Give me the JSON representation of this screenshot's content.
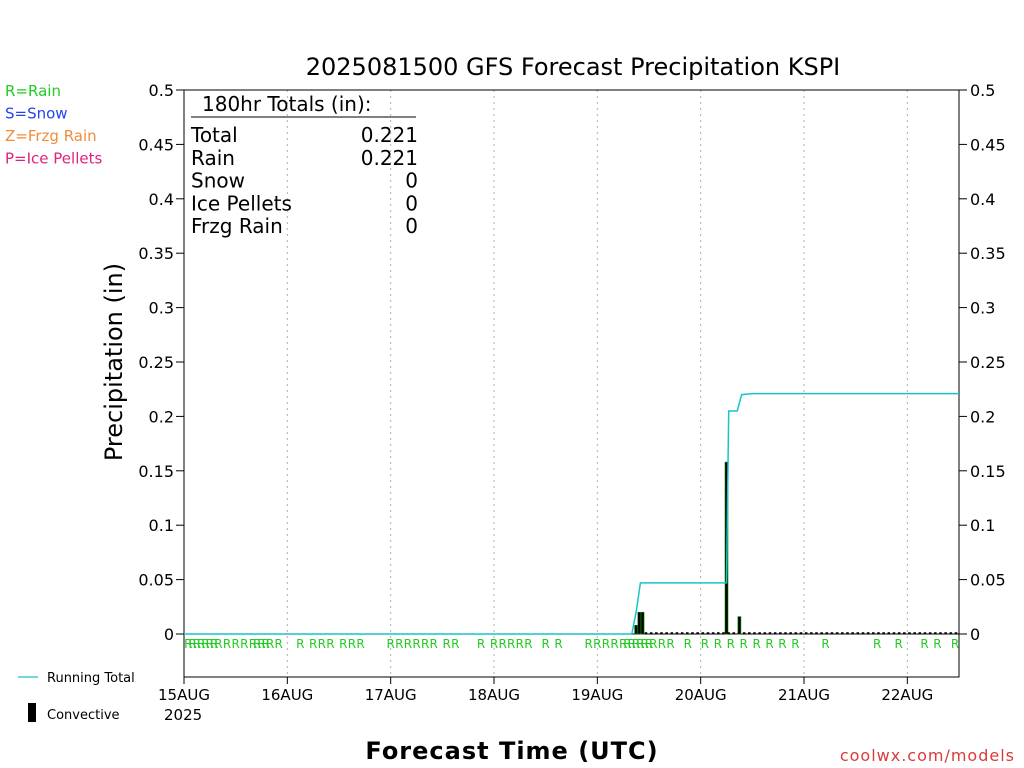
{
  "colors": {
    "rain": "#22cc22",
    "snow": "#2244ee",
    "freezing_rain": "#f08c3c",
    "ice_pellets": "#e0207c",
    "running_total": "#19c3c8",
    "convective": "#000000",
    "bar_edge": "#0a8a0a",
    "grid": "#b0b0b0",
    "credit": "#d83c3c"
  },
  "type_legend": [
    {
      "label": "R=Rain",
      "color": "#22cc22"
    },
    {
      "label": "S=Snow",
      "color": "#2244ee"
    },
    {
      "label": "Z=Frzg Rain",
      "color": "#f08c3c"
    },
    {
      "label": "P=Ice Pellets",
      "color": "#e0207c"
    }
  ],
  "series_legend": {
    "running_total": "Running Total",
    "convective": "Convective"
  },
  "totals": {
    "header": "180hr Totals (in):",
    "rows": [
      {
        "label": "Total",
        "value": "0.221"
      },
      {
        "label": "Rain",
        "value": "0.221"
      },
      {
        "label": "Snow",
        "value": "0"
      },
      {
        "label": "Ice Pellets",
        "value": "0"
      },
      {
        "label": "Frzg Rain",
        "value": "0"
      }
    ]
  },
  "credit": "coolwx.com/models",
  "chart_data": {
    "type": "bar",
    "title": "2025081500 GFS Forecast Precipitation KSPI",
    "xlabel": "Forecast Time (UTC)",
    "ylabel": "Precipitation (in)",
    "ylim": [
      0,
      0.5
    ],
    "yticks": [
      "0",
      "0.05",
      "0.1",
      "0.15",
      "0.2",
      "0.25",
      "0.3",
      "0.35",
      "0.4",
      "0.45",
      "0.5"
    ],
    "xlim_hours": [
      0,
      180
    ],
    "xticks": [
      {
        "hour": 0,
        "label": "15AUG"
      },
      {
        "hour": 24,
        "label": "16AUG"
      },
      {
        "hour": 48,
        "label": "17AUG"
      },
      {
        "hour": 72,
        "label": "18AUG"
      },
      {
        "hour": 96,
        "label": "19AUG"
      },
      {
        "hour": 120,
        "label": "20AUG"
      },
      {
        "hour": 144,
        "label": "21AUG"
      },
      {
        "hour": 168,
        "label": "22AUG"
      }
    ],
    "year_label": "2025",
    "grid": "vertical dotted",
    "bars_6hr": [
      {
        "hour": 105,
        "value": 0.008
      },
      {
        "hour": 105.75,
        "value": 0.02
      },
      {
        "hour": 106.5,
        "value": 0.02
      },
      {
        "hour": 126,
        "value": 0.158
      },
      {
        "hour": 129,
        "value": 0.016
      }
    ],
    "running_total": [
      [
        0,
        0
      ],
      [
        104,
        0
      ],
      [
        105,
        0.02
      ],
      [
        106,
        0.047
      ],
      [
        126,
        0.047
      ],
      [
        126.5,
        0.205
      ],
      [
        128.5,
        0.205
      ],
      [
        129.5,
        0.22
      ],
      [
        132,
        0.221
      ],
      [
        180,
        0.221
      ]
    ],
    "precip_type_hours": [
      1,
      2,
      3,
      4,
      5,
      6,
      7,
      8,
      10,
      12,
      14,
      16,
      17,
      18,
      19,
      20,
      22,
      27,
      30,
      32,
      34,
      37,
      39,
      41,
      48,
      50,
      52,
      54,
      56,
      58,
      61,
      63,
      69,
      72,
      74,
      76,
      78,
      80,
      84,
      87,
      94,
      96,
      98,
      100,
      102,
      103,
      104,
      105,
      106,
      107,
      108,
      109,
      111,
      113,
      117,
      121,
      124,
      127,
      130,
      133,
      136,
      139,
      142,
      149,
      161,
      166,
      172,
      175,
      180
    ],
    "precip_type_label": "R"
  }
}
